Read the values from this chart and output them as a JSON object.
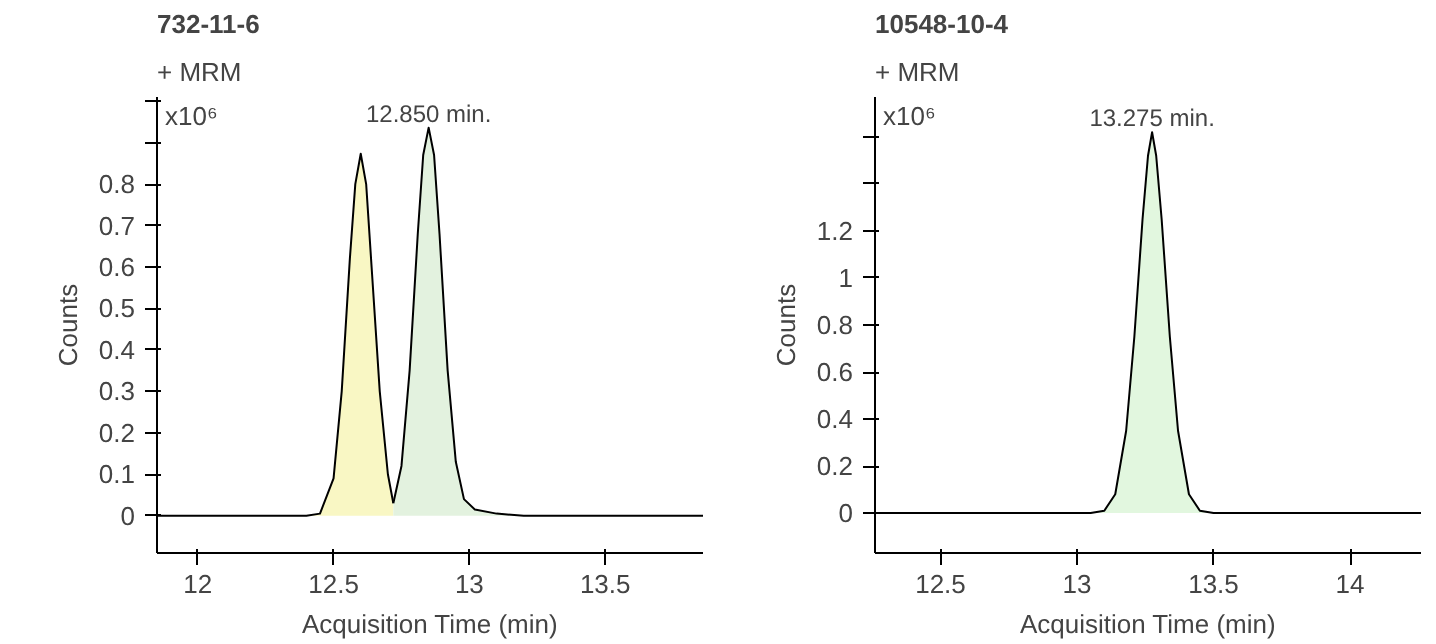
{
  "chart_data": [
    {
      "type": "area",
      "title": "732-11-6",
      "ylabel": "Counts",
      "xlabel": "Acquisition Time (min)",
      "annotations": [
        "+ MRM",
        "x10⁶",
        {
          "text": "12.850 min.",
          "x": 12.85,
          "y": 0.936
        }
      ],
      "xlim": [
        11.85,
        13.86
      ],
      "xticks": [
        12,
        12.5,
        13,
        13.5
      ],
      "ylim": [
        -0.09,
        1.01
      ],
      "yticks": [
        0,
        0.1,
        0.2,
        0.3,
        0.4,
        0.5,
        0.6,
        0.7,
        0.8,
        {
          "value": 0.9,
          "label": null
        },
        {
          "value": 1,
          "label": null
        }
      ],
      "grid": false,
      "series": [
        {
          "color": "#f9f7c4",
          "x": [
            11.85,
            12.4,
            12.45,
            12.5,
            12.53,
            12.56,
            12.58,
            12.6,
            12.62,
            12.64,
            12.67,
            12.7,
            12.72
          ],
          "values": [
            0,
            0,
            0.005,
            0.09,
            0.3,
            0.62,
            0.8,
            0.873,
            0.8,
            0.6,
            0.3,
            0.1,
            0.03
          ]
        },
        {
          "color": "#e3f2df",
          "x": [
            12.72,
            12.75,
            12.78,
            12.81,
            12.83,
            12.85,
            12.87,
            12.89,
            12.92,
            12.95,
            12.98,
            13.02,
            13.1,
            13.2,
            13.86
          ],
          "values": [
            0.03,
            0.12,
            0.35,
            0.68,
            0.87,
            0.936,
            0.87,
            0.68,
            0.35,
            0.13,
            0.04,
            0.015,
            0.005,
            0,
            0
          ]
        }
      ]
    },
    {
      "type": "area",
      "title": "10548-10-4",
      "ylabel": "Counts",
      "xlabel": "Acquisition Time (min)",
      "annotations": [
        "+ MRM",
        "x10⁶",
        {
          "text": "13.275 min.",
          "x": 13.275,
          "y": 1.62
        }
      ],
      "xlim": [
        12.26,
        14.26
      ],
      "xticks": [
        12.5,
        13,
        13.5,
        14
      ],
      "ylim": [
        -0.17,
        1.77
      ],
      "yticks": [
        0,
        0.2,
        0.4,
        0.6,
        0.8,
        1,
        1.2,
        {
          "value": 1.4,
          "label": null
        },
        {
          "value": 1.6,
          "label": null
        }
      ],
      "grid": false,
      "series": [
        {
          "color": "#e2f7df",
          "x": [
            12.26,
            13.05,
            13.1,
            13.14,
            13.18,
            13.21,
            13.24,
            13.26,
            13.275,
            13.29,
            13.31,
            13.34,
            13.37,
            13.41,
            13.45,
            13.5,
            14.26
          ],
          "values": [
            0,
            0,
            0.01,
            0.08,
            0.35,
            0.75,
            1.25,
            1.52,
            1.62,
            1.52,
            1.25,
            0.75,
            0.35,
            0.08,
            0.01,
            0,
            0
          ]
        }
      ]
    }
  ]
}
